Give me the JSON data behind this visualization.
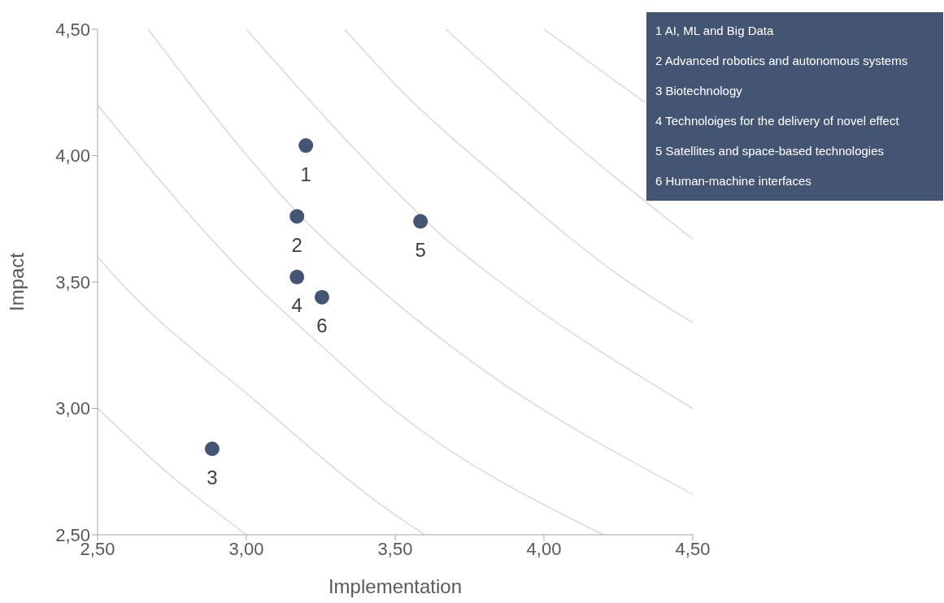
{
  "chart_data": {
    "type": "scatter",
    "xlabel": "Implementation",
    "ylabel": "Impact",
    "xlim": [
      2.5,
      4.5
    ],
    "ylim": [
      2.5,
      4.5
    ],
    "xticks": [
      {
        "value": 2.5,
        "label": "2,50"
      },
      {
        "value": 3,
        "label": "3,00"
      },
      {
        "value": 3.5,
        "label": "3,50"
      },
      {
        "value": 4,
        "label": "4,00"
      },
      {
        "value": 4.5,
        "label": "4,50"
      }
    ],
    "yticks": [
      {
        "value": 2.5,
        "label": "2,50"
      },
      {
        "value": 3,
        "label": "3,00"
      },
      {
        "value": 3.5,
        "label": "3,50"
      },
      {
        "value": 4,
        "label": "4,00"
      },
      {
        "value": 4.5,
        "label": "4,50"
      }
    ],
    "grid": false,
    "marker": "circle",
    "series": [
      {
        "type": "line",
        "marker": "none",
        "color": "#d9d9d9",
        "x": [
          2.5,
          2.74,
          3.0
        ],
        "values": [
          3.0,
          2.74,
          2.5
        ]
      },
      {
        "type": "line",
        "marker": "none",
        "color": "#d9d9d9",
        "x": [
          2.5,
          2.56,
          3.03,
          3.51,
          3.6
        ],
        "values": [
          3.6,
          3.52,
          3.03,
          2.57,
          2.5
        ]
      },
      {
        "type": "line",
        "marker": "none",
        "color": "#d9d9d9",
        "x": [
          2.5,
          3.02,
          3.25,
          3.48,
          4.2
        ],
        "values": [
          4.2,
          3.5,
          3.25,
          3.01,
          2.5
        ]
      },
      {
        "type": "line",
        "marker": "none",
        "color": "#d9d9d9",
        "x": [
          2.67,
          3.2,
          3.46,
          3.74,
          4.5
        ],
        "values": [
          4.5,
          3.74,
          3.46,
          3.2,
          2.66
        ]
      },
      {
        "type": "line",
        "marker": "none",
        "color": "#d9d9d9",
        "x": [
          3.0,
          3.51,
          3.67,
          3.83,
          4.5
        ],
        "values": [
          4.5,
          3.85,
          3.67,
          3.52,
          3.0
        ]
      },
      {
        "type": "line",
        "marker": "none",
        "color": "#d9d9d9",
        "x": [
          3.33,
          3.51,
          3.88,
          4.26,
          4.5
        ],
        "values": [
          4.5,
          4.27,
          3.88,
          3.52,
          3.34
        ]
      },
      {
        "type": "line",
        "marker": "none",
        "color": "#d9d9d9",
        "x": [
          3.67,
          4.1,
          4.5
        ],
        "values": [
          4.5,
          4.05,
          3.67
        ]
      },
      {
        "type": "line",
        "marker": "none",
        "color": "#d9d9d9",
        "x": [
          4.0,
          4.34
        ],
        "values": [
          4.5,
          4.21
        ]
      },
      {
        "name": "1",
        "color": "#445573",
        "x": [
          3.2
        ],
        "values": [
          4.04
        ]
      },
      {
        "name": "2",
        "color": "#445573",
        "x": [
          3.17
        ],
        "values": [
          3.76
        ]
      },
      {
        "name": "3",
        "color": "#445573",
        "x": [
          2.885
        ],
        "values": [
          2.84
        ]
      },
      {
        "name": "4",
        "color": "#445573",
        "x": [
          3.17
        ],
        "values": [
          3.52
        ]
      },
      {
        "name": "5",
        "color": "#445573",
        "x": [
          3.585
        ],
        "values": [
          3.74
        ]
      },
      {
        "name": "6",
        "color": "#445573",
        "x": [
          3.254
        ],
        "values": [
          3.44
        ]
      }
    ],
    "annotations": [
      "1 AI, ML and Big Data",
      "2 Advanced robotics and autonomous systems",
      "3 Biotechnology",
      "4 Technoloiges for the delivery of novel effect",
      "5 Satellites and space-based technologies",
      "6 Human-machine interfaces"
    ]
  }
}
